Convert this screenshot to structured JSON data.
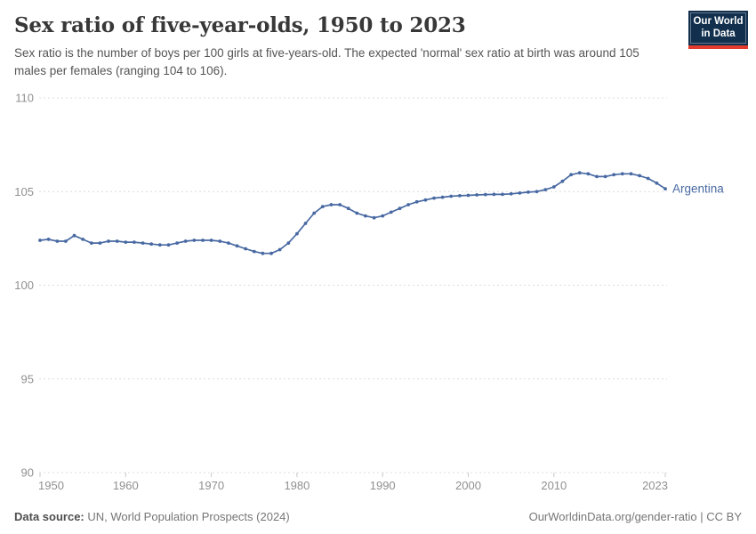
{
  "header": {
    "title": "Sex ratio of five-year-olds, 1950 to 2023",
    "subtitle": "Sex ratio is the number of boys per 100 girls at five-years-old. The expected 'normal' sex ratio at birth was around 105 males per females (ranging 104 to 106).",
    "logo": {
      "line1": "Our World",
      "line2": "in Data"
    }
  },
  "chart_data": {
    "type": "line",
    "title": "Sex ratio of five-year-olds, 1950 to 2023",
    "xlabel": "",
    "ylabel": "",
    "ylim": [
      90,
      110
    ],
    "yticks": [
      90,
      95,
      100,
      105,
      110
    ],
    "xticks": [
      1950,
      1960,
      1970,
      1980,
      1990,
      2000,
      2010,
      2023
    ],
    "grid": "horizontal-dashed",
    "legend_position": "end-of-line",
    "x": [
      1950,
      1951,
      1952,
      1953,
      1954,
      1955,
      1956,
      1957,
      1958,
      1959,
      1960,
      1961,
      1962,
      1963,
      1964,
      1965,
      1966,
      1967,
      1968,
      1969,
      1970,
      1971,
      1972,
      1973,
      1974,
      1975,
      1976,
      1977,
      1978,
      1979,
      1980,
      1981,
      1982,
      1983,
      1984,
      1985,
      1986,
      1987,
      1988,
      1989,
      1990,
      1991,
      1992,
      1993,
      1994,
      1995,
      1996,
      1997,
      1998,
      1999,
      2000,
      2001,
      2002,
      2003,
      2004,
      2005,
      2006,
      2007,
      2008,
      2009,
      2010,
      2011,
      2012,
      2013,
      2014,
      2015,
      2016,
      2017,
      2018,
      2019,
      2020,
      2021,
      2022,
      2023
    ],
    "series": [
      {
        "name": "Argentina",
        "color": "#4869A2",
        "values": [
          102.4,
          102.45,
          102.35,
          102.35,
          102.65,
          102.45,
          102.25,
          102.25,
          102.35,
          102.35,
          102.3,
          102.3,
          102.25,
          102.2,
          102.15,
          102.15,
          102.25,
          102.35,
          102.4,
          102.4,
          102.4,
          102.35,
          102.25,
          102.1,
          101.95,
          101.8,
          101.7,
          101.7,
          101.9,
          102.25,
          102.75,
          103.3,
          103.85,
          104.2,
          104.3,
          104.3,
          104.1,
          103.85,
          103.7,
          103.6,
          103.7,
          103.9,
          104.1,
          104.3,
          104.45,
          104.55,
          104.65,
          104.7,
          104.75,
          104.78,
          104.8,
          104.82,
          104.84,
          104.85,
          104.85,
          104.88,
          104.92,
          104.97,
          105.0,
          105.1,
          105.25,
          105.55,
          105.9,
          106.0,
          105.95,
          105.8,
          105.8,
          105.9,
          105.95,
          105.95,
          105.85,
          105.7,
          105.45,
          105.15
        ]
      }
    ]
  },
  "footer": {
    "source_label": "Data source:",
    "source_text": " UN, World Population Prospects (2024)",
    "link_text": "OurWorldinData.org/gender-ratio | CC BY"
  }
}
